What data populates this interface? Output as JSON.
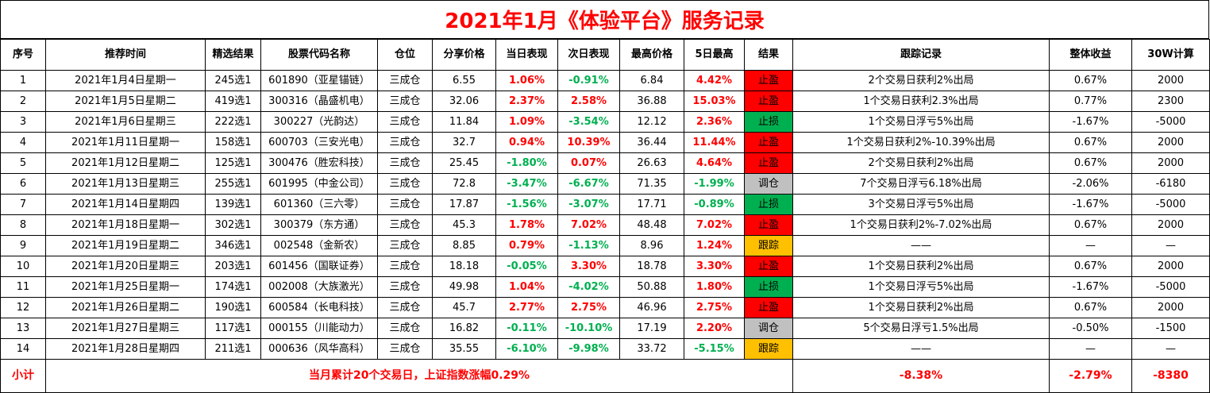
{
  "title": "2021年1月《体验平台》服务记录",
  "columns": [
    "序号",
    "推荐时间",
    "精选结果",
    "股票代码名称",
    "仓位",
    "分享价格",
    "当日表现",
    "次日表现",
    "最高价格",
    "5日最高",
    "结果",
    "跟踪记录",
    "整体收益",
    "30W计算"
  ],
  "colors": {
    "red": "#ff0000",
    "green": "#00b050",
    "grey": "#c0c0c0",
    "amber": "#ffc000"
  },
  "rows": [
    {
      "no": "1",
      "date": "2021年1月4日星期一",
      "pick": "245选1",
      "stock": "601890（亚星锚链）",
      "pos": "三成仓",
      "price": "6.55",
      "day1": "1.06%",
      "day1c": "red",
      "day2": "-0.91%",
      "day2c": "green",
      "high": "6.84",
      "d5": "4.42%",
      "d5c": "red",
      "result": "止盈",
      "rc": "zy",
      "track": "2个交易日获利2%出局",
      "gain": "0.67%",
      "calc": "2000"
    },
    {
      "no": "2",
      "date": "2021年1月5日星期二",
      "pick": "419选1",
      "stock": "300316（晶盛机电）",
      "pos": "三成仓",
      "price": "32.06",
      "day1": "2.37%",
      "day1c": "red",
      "day2": "2.58%",
      "day2c": "red",
      "high": "36.88",
      "d5": "15.03%",
      "d5c": "red",
      "result": "止盈",
      "rc": "zy",
      "track": "1个交易日获利2.3%出局",
      "gain": "0.77%",
      "calc": "2300"
    },
    {
      "no": "3",
      "date": "2021年1月6日星期三",
      "pick": "222选1",
      "stock": "300227（光韵达）",
      "pos": "三成仓",
      "price": "11.84",
      "day1": "1.09%",
      "day1c": "red",
      "day2": "-3.54%",
      "day2c": "green",
      "high": "12.12",
      "d5": "2.36%",
      "d5c": "red",
      "result": "止损",
      "rc": "zs",
      "track": "1个交易日浮亏5%出局",
      "gain": "-1.67%",
      "calc": "-5000"
    },
    {
      "no": "4",
      "date": "2021年1月11日星期一",
      "pick": "158选1",
      "stock": "600703（三安光电）",
      "pos": "三成仓",
      "price": "32.7",
      "day1": "0.94%",
      "day1c": "red",
      "day2": "10.39%",
      "day2c": "red",
      "high": "36.44",
      "d5": "11.44%",
      "d5c": "red",
      "result": "止盈",
      "rc": "zy",
      "track": "1个交易日获利2%-10.39%出局",
      "gain": "0.67%",
      "calc": "2000"
    },
    {
      "no": "5",
      "date": "2021年1月12日星期二",
      "pick": "125选1",
      "stock": "300476（胜宏科技）",
      "pos": "三成仓",
      "price": "25.45",
      "day1": "-1.80%",
      "day1c": "green",
      "day2": "0.07%",
      "day2c": "red",
      "high": "26.63",
      "d5": "4.64%",
      "d5c": "red",
      "result": "止盈",
      "rc": "zy",
      "track": "2个交易日获利2%出局",
      "gain": "0.67%",
      "calc": "2000"
    },
    {
      "no": "6",
      "date": "2021年1月13日星期三",
      "pick": "255选1",
      "stock": "601995（中金公司）",
      "pos": "三成仓",
      "price": "72.8",
      "day1": "-3.47%",
      "day1c": "green",
      "day2": "-6.67%",
      "day2c": "green",
      "high": "71.35",
      "d5": "-1.99%",
      "d5c": "green",
      "result": "调仓",
      "rc": "tc",
      "track": "7个交易日浮亏6.18%出局",
      "gain": "-2.06%",
      "calc": "-6180"
    },
    {
      "no": "7",
      "date": "2021年1月14日星期四",
      "pick": "139选1",
      "stock": "601360（三六零）",
      "pos": "三成仓",
      "price": "17.87",
      "day1": "-1.56%",
      "day1c": "green",
      "day2": "-3.07%",
      "day2c": "green",
      "high": "17.71",
      "d5": "-0.89%",
      "d5c": "green",
      "result": "止损",
      "rc": "zs",
      "track": "3个交易日浮亏5%出局",
      "gain": "-1.67%",
      "calc": "-5000"
    },
    {
      "no": "8",
      "date": "2021年1月18日星期一",
      "pick": "302选1",
      "stock": "300379（东方通）",
      "pos": "三成仓",
      "price": "45.3",
      "day1": "1.78%",
      "day1c": "red",
      "day2": "7.02%",
      "day2c": "red",
      "high": "48.48",
      "d5": "7.02%",
      "d5c": "red",
      "result": "止盈",
      "rc": "zy",
      "track": "1个交易日获利2%-7.02%出局",
      "gain": "0.67%",
      "calc": "2000"
    },
    {
      "no": "9",
      "date": "2021年1月19日星期二",
      "pick": "346选1",
      "stock": "002548（金新农）",
      "pos": "三成仓",
      "price": "8.85",
      "day1": "0.79%",
      "day1c": "red",
      "day2": "-1.13%",
      "day2c": "green",
      "high": "8.96",
      "d5": "1.24%",
      "d5c": "red",
      "result": "跟踪",
      "rc": "gz",
      "track": "——",
      "gain": "—",
      "calc": "—"
    },
    {
      "no": "10",
      "date": "2021年1月20日星期三",
      "pick": "203选1",
      "stock": "601456（国联证券）",
      "pos": "三成仓",
      "price": "18.18",
      "day1": "-0.05%",
      "day1c": "green",
      "day2": "3.30%",
      "day2c": "red",
      "high": "18.78",
      "d5": "3.30%",
      "d5c": "red",
      "result": "止盈",
      "rc": "zy",
      "track": "1个交易日获利2%出局",
      "gain": "0.67%",
      "calc": "2000"
    },
    {
      "no": "11",
      "date": "2021年1月25日星期一",
      "pick": "174选1",
      "stock": "002008（大族激光）",
      "pos": "三成仓",
      "price": "49.98",
      "day1": "1.04%",
      "day1c": "red",
      "day2": "-4.02%",
      "day2c": "green",
      "high": "50.88",
      "d5": "1.80%",
      "d5c": "red",
      "result": "止损",
      "rc": "zs",
      "track": "1个交易日浮亏5%出局",
      "gain": "-1.67%",
      "calc": "-5000"
    },
    {
      "no": "12",
      "date": "2021年1月26日星期二",
      "pick": "190选1",
      "stock": "600584（长电科技）",
      "pos": "三成仓",
      "price": "45.7",
      "day1": "2.77%",
      "day1c": "red",
      "day2": "2.75%",
      "day2c": "red",
      "high": "46.96",
      "d5": "2.75%",
      "d5c": "red",
      "result": "止盈",
      "rc": "zy",
      "track": "1个交易日获利2%出局",
      "gain": "0.67%",
      "calc": "2000"
    },
    {
      "no": "13",
      "date": "2021年1月27日星期三",
      "pick": "117选1",
      "stock": "000155（川能动力）",
      "pos": "三成仓",
      "price": "16.82",
      "day1": "-0.11%",
      "day1c": "green",
      "day2": "-10.10%",
      "day2c": "green",
      "high": "17.19",
      "d5": "2.20%",
      "d5c": "red",
      "result": "调仓",
      "rc": "tc",
      "track": "5个交易日浮亏1.5%出局",
      "gain": "-0.50%",
      "calc": "-1500"
    },
    {
      "no": "14",
      "date": "2021年1月28日星期四",
      "pick": "211选1",
      "stock": "000636（风华高科）",
      "pos": "三成仓",
      "price": "35.55",
      "day1": "-6.10%",
      "day1c": "green",
      "day2": "-9.98%",
      "day2c": "green",
      "high": "33.72",
      "d5": "-5.15%",
      "d5c": "green",
      "result": "跟踪",
      "rc": "gz",
      "track": "——",
      "gain": "—",
      "calc": "—"
    }
  ],
  "footer": {
    "label": "小计",
    "summary": "当月累计20个交易日，上证指数涨幅0.29%",
    "track_total": "-8.38%",
    "gain_total": "-2.79%",
    "calc_total": "-8380"
  }
}
